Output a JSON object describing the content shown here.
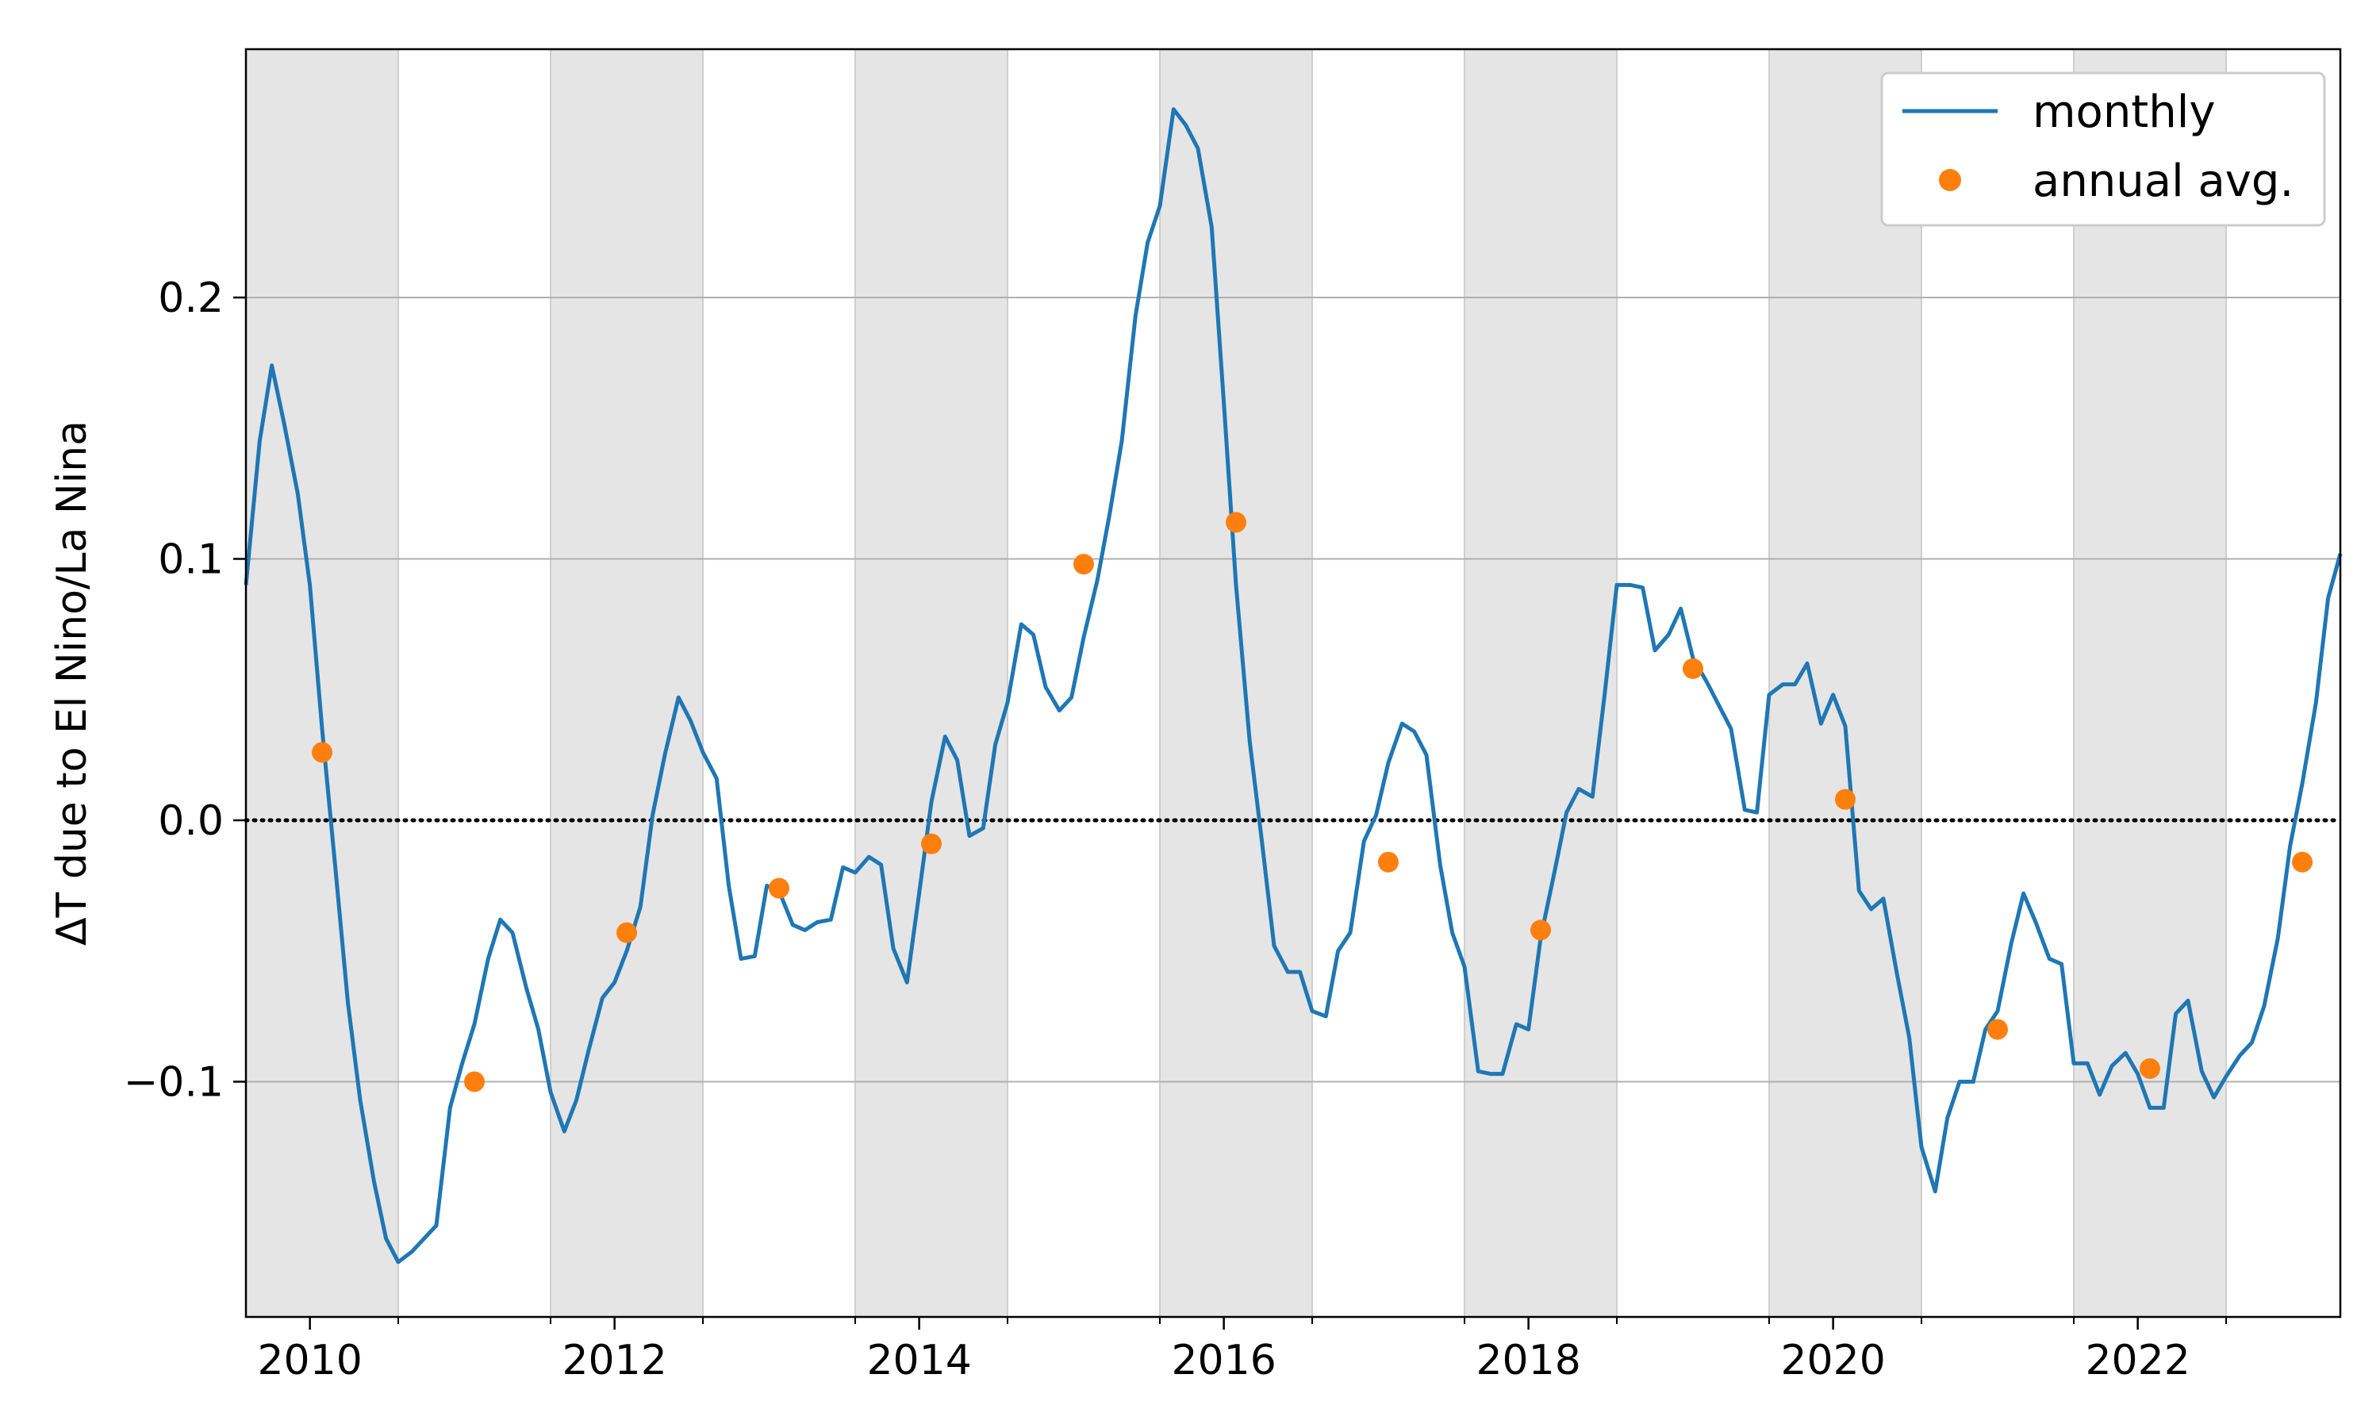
{
  "chart_data": {
    "type": "line",
    "title": "",
    "xlabel": "",
    "ylabel": "ΔT due to El Nino/La Nina",
    "xlim": [
      2009.58,
      2023.33
    ],
    "ylim": [
      -0.19,
      0.295
    ],
    "x_ticks": [
      {
        "value": 2010,
        "label": "2010"
      },
      {
        "value": 2012,
        "label": "2012"
      },
      {
        "value": 2014,
        "label": "2014"
      },
      {
        "value": 2016,
        "label": "2016"
      },
      {
        "value": 2018,
        "label": "2018"
      },
      {
        "value": 2020,
        "label": "2020"
      },
      {
        "value": 2022,
        "label": "2022"
      }
    ],
    "y_ticks": [
      {
        "value": -0.1,
        "label": "−0.1"
      },
      {
        "value": 0.0,
        "label": "0.0"
      },
      {
        "value": 0.1,
        "label": "0.1"
      },
      {
        "value": 0.2,
        "label": "0.2"
      }
    ],
    "grid": "horizontal",
    "zero_line": "dotted",
    "shaded_bands": [
      [
        2009.58,
        2010.58
      ],
      [
        2011.58,
        2012.58
      ],
      [
        2013.58,
        2014.58
      ],
      [
        2015.58,
        2016.58
      ],
      [
        2017.58,
        2018.58
      ],
      [
        2019.58,
        2020.58
      ],
      [
        2021.58,
        2022.58
      ]
    ],
    "legend": {
      "position": "top-right",
      "entries": [
        {
          "label": "monthly",
          "marker": "line",
          "color": "#1f77b4"
        },
        {
          "label": "annual avg.",
          "marker": "dot",
          "color": "#ff7f0e"
        }
      ]
    },
    "series": [
      {
        "name": "monthly",
        "color": "#1f77b4",
        "x": [
          2009.58,
          2009.67,
          2009.75,
          2009.83,
          2009.92,
          2010.0,
          2010.08,
          2010.17,
          2010.25,
          2010.33,
          2010.42,
          2010.5,
          2010.58,
          2010.67,
          2010.75,
          2010.83,
          2010.92,
          2011.0,
          2011.08,
          2011.17,
          2011.25,
          2011.33,
          2011.42,
          2011.5,
          2011.58,
          2011.67,
          2011.75,
          2011.83,
          2011.92,
          2012.0,
          2012.08,
          2012.17,
          2012.25,
          2012.33,
          2012.42,
          2012.5,
          2012.58,
          2012.67,
          2012.75,
          2012.83,
          2012.92,
          2013.0,
          2013.08,
          2013.17,
          2013.25,
          2013.33,
          2013.42,
          2013.5,
          2013.58,
          2013.67,
          2013.75,
          2013.83,
          2013.92,
          2014.0,
          2014.08,
          2014.17,
          2014.25,
          2014.33,
          2014.42,
          2014.5,
          2014.58,
          2014.67,
          2014.75,
          2014.83,
          2014.92,
          2015.0,
          2015.08,
          2015.17,
          2015.25,
          2015.33,
          2015.42,
          2015.5,
          2015.58,
          2015.67,
          2015.75,
          2015.83,
          2015.92,
          2016.0,
          2016.08,
          2016.17,
          2016.25,
          2016.33,
          2016.42,
          2016.5,
          2016.58,
          2016.67,
          2016.75,
          2016.83,
          2016.92,
          2017.0,
          2017.08,
          2017.17,
          2017.25,
          2017.33,
          2017.42,
          2017.5,
          2017.58,
          2017.67,
          2017.75,
          2017.83,
          2017.92,
          2018.0,
          2018.08,
          2018.17,
          2018.25,
          2018.33,
          2018.42,
          2018.5,
          2018.58,
          2018.67,
          2018.75,
          2018.83,
          2018.92,
          2019.0,
          2019.08,
          2019.17,
          2019.25,
          2019.33,
          2019.42,
          2019.5,
          2019.58,
          2019.67,
          2019.75,
          2019.83,
          2019.92,
          2020.0,
          2020.08,
          2020.17,
          2020.25,
          2020.33,
          2020.42,
          2020.5,
          2020.58,
          2020.67,
          2020.75,
          2020.83,
          2020.92,
          2021.0,
          2021.08,
          2021.17,
          2021.25,
          2021.33,
          2021.42,
          2021.5,
          2021.58,
          2021.67,
          2021.75,
          2021.83,
          2021.92,
          2022.0,
          2022.08,
          2022.17,
          2022.25,
          2022.33,
          2022.42,
          2022.5,
          2022.58,
          2022.67,
          2022.75,
          2022.83,
          2022.92,
          2023.0,
          2023.08,
          2023.17,
          2023.25,
          2023.33
        ],
        "values": [
          0.09,
          0.145,
          0.174,
          0.152,
          0.125,
          0.09,
          0.035,
          -0.02,
          -0.07,
          -0.107,
          -0.138,
          -0.16,
          -0.169,
          -0.165,
          -0.16,
          -0.155,
          -0.11,
          -0.093,
          -0.078,
          -0.053,
          -0.038,
          -0.043,
          -0.064,
          -0.08,
          -0.104,
          -0.119,
          -0.107,
          -0.088,
          -0.068,
          -0.062,
          -0.05,
          -0.033,
          0.002,
          0.025,
          0.047,
          0.038,
          0.026,
          0.016,
          -0.025,
          -0.053,
          -0.052,
          -0.025,
          -0.027,
          -0.04,
          -0.042,
          -0.039,
          -0.038,
          -0.018,
          -0.02,
          -0.014,
          -0.017,
          -0.049,
          -0.062,
          -0.028,
          0.007,
          0.032,
          0.023,
          -0.006,
          -0.003,
          0.029,
          0.045,
          0.075,
          0.071,
          0.051,
          0.042,
          0.047,
          0.07,
          0.092,
          0.117,
          0.145,
          0.193,
          0.221,
          0.235,
          0.272,
          0.266,
          0.257,
          0.227,
          0.16,
          0.09,
          0.03,
          -0.008,
          -0.048,
          -0.058,
          -0.058,
          -0.073,
          -0.075,
          -0.05,
          -0.043,
          -0.008,
          0.002,
          0.022,
          0.037,
          0.034,
          0.025,
          -0.017,
          -0.043,
          -0.056,
          -0.096,
          -0.097,
          -0.097,
          -0.078,
          -0.08,
          -0.045,
          -0.02,
          0.003,
          0.012,
          0.009,
          0.048,
          0.09,
          0.09,
          0.089,
          0.065,
          0.071,
          0.081,
          0.062,
          0.053,
          0.044,
          0.035,
          0.004,
          0.003,
          0.048,
          0.052,
          0.052,
          0.06,
          0.037,
          0.048,
          0.036,
          -0.027,
          -0.034,
          -0.03,
          -0.059,
          -0.083,
          -0.125,
          -0.142,
          -0.114,
          -0.1,
          -0.1,
          -0.08,
          -0.073,
          -0.047,
          -0.028,
          -0.039,
          -0.053,
          -0.055,
          -0.093,
          -0.093,
          -0.105,
          -0.094,
          -0.089,
          -0.097,
          -0.11,
          -0.11,
          -0.074,
          -0.069,
          -0.096,
          -0.106,
          -0.098,
          -0.09,
          -0.085,
          -0.071,
          -0.045,
          -0.01,
          0.014,
          0.045,
          0.085,
          0.102
        ]
      },
      {
        "name": "annual avg.",
        "color": "#ff7f0e",
        "x": [
          2010.08,
          2011.08,
          2012.08,
          2013.08,
          2014.08,
          2015.08,
          2016.08,
          2017.08,
          2018.08,
          2019.08,
          2020.08,
          2021.08,
          2022.08,
          2023.08
        ],
        "values": [
          0.026,
          -0.1,
          -0.043,
          -0.026,
          -0.009,
          0.098,
          0.114,
          -0.016,
          -0.042,
          0.058,
          0.008,
          -0.08,
          -0.095,
          -0.016
        ]
      }
    ]
  }
}
